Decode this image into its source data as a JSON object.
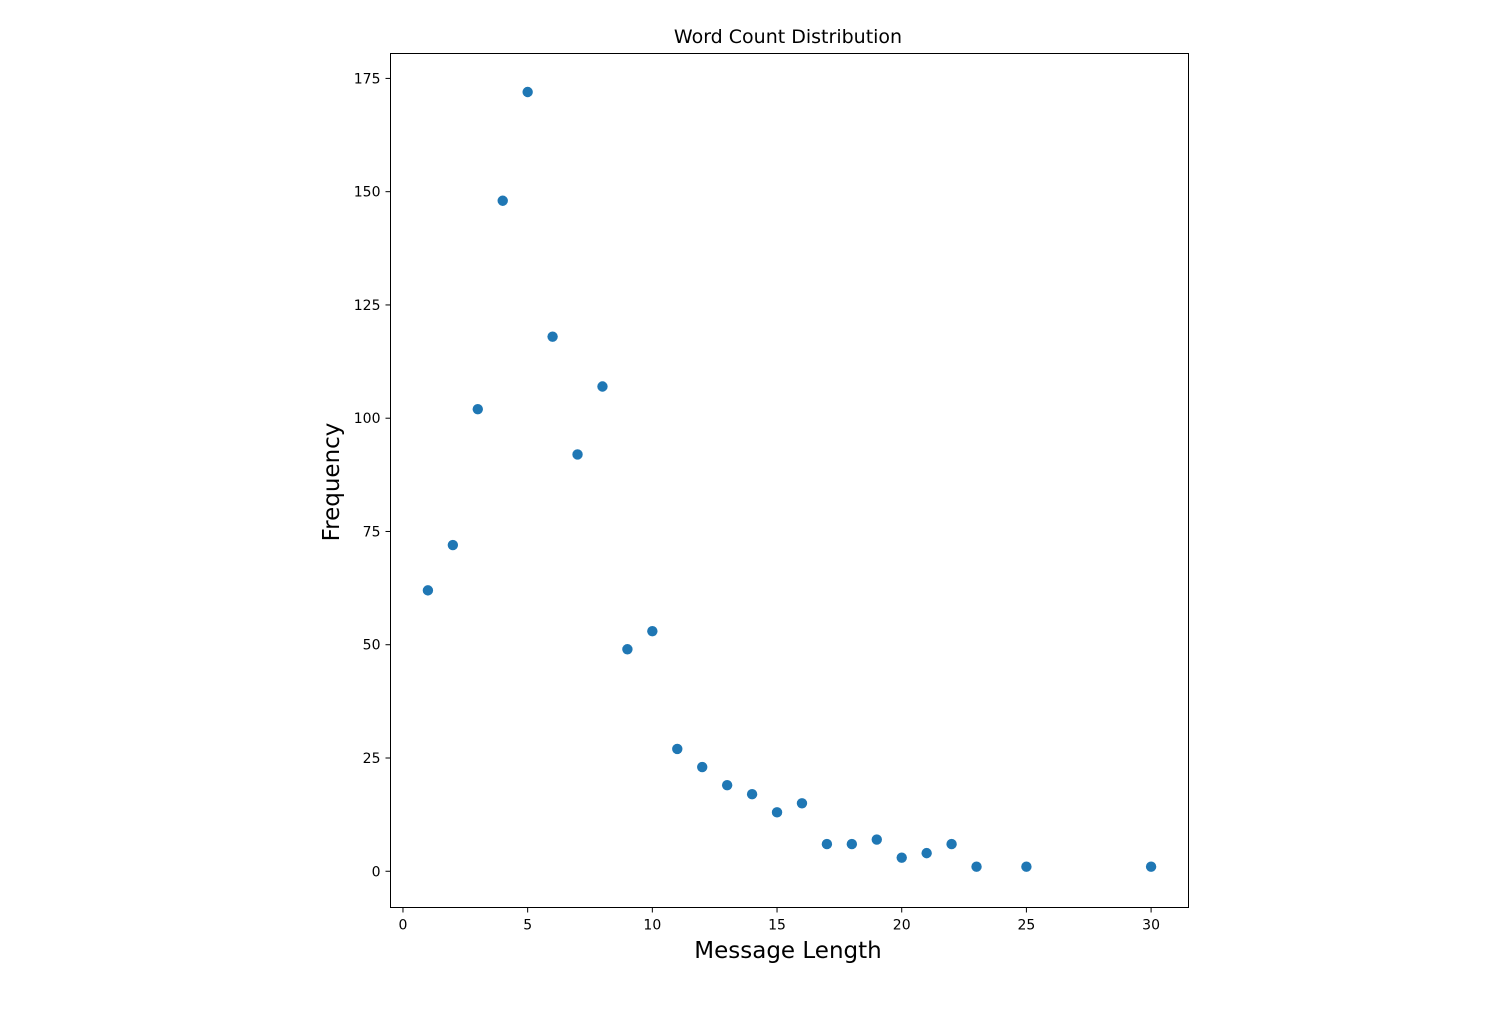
{
  "chart_data": {
    "type": "scatter",
    "title": "Word Count Distribution",
    "xlabel": "Message Length",
    "ylabel": "Frequency",
    "xlim": [
      -0.5,
      31.5
    ],
    "ylim": [
      -8,
      180.5
    ],
    "xticks": [
      0,
      5,
      10,
      15,
      20,
      25,
      30
    ],
    "yticks": [
      0,
      25,
      50,
      75,
      100,
      125,
      150,
      175
    ],
    "xtick_labels": [
      "0",
      "5",
      "10",
      "15",
      "20",
      "25",
      "30"
    ],
    "ytick_labels": [
      "0",
      "25",
      "50",
      "75",
      "100",
      "125",
      "150",
      "175"
    ],
    "marker_color": "#1f77b4",
    "grid": false,
    "points": [
      {
        "x": 1,
        "y": 62
      },
      {
        "x": 2,
        "y": 72
      },
      {
        "x": 3,
        "y": 102
      },
      {
        "x": 4,
        "y": 148
      },
      {
        "x": 5,
        "y": 172
      },
      {
        "x": 6,
        "y": 118
      },
      {
        "x": 7,
        "y": 92
      },
      {
        "x": 8,
        "y": 107
      },
      {
        "x": 9,
        "y": 49
      },
      {
        "x": 10,
        "y": 53
      },
      {
        "x": 11,
        "y": 27
      },
      {
        "x": 12,
        "y": 23
      },
      {
        "x": 13,
        "y": 19
      },
      {
        "x": 14,
        "y": 17
      },
      {
        "x": 15,
        "y": 13
      },
      {
        "x": 16,
        "y": 15
      },
      {
        "x": 17,
        "y": 6
      },
      {
        "x": 18,
        "y": 6
      },
      {
        "x": 19,
        "y": 7
      },
      {
        "x": 20,
        "y": 3
      },
      {
        "x": 21,
        "y": 4
      },
      {
        "x": 22,
        "y": 6
      },
      {
        "x": 23,
        "y": 1
      },
      {
        "x": 25,
        "y": 1
      },
      {
        "x": 30,
        "y": 1
      }
    ]
  }
}
